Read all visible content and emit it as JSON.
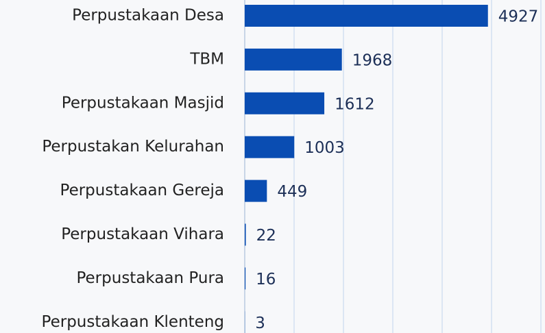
{
  "chart_data": {
    "type": "bar",
    "orientation": "horizontal",
    "categories": [
      "Perpustakaan Desa",
      "TBM",
      "Perpustakaan Masjid",
      "Perpustakan Kelurahan",
      "Perpustakaan Gereja",
      "Perpustakaan Vihara",
      "Perpustakaan Pura",
      "Perpustakaan Klenteng"
    ],
    "values": [
      4927,
      1968,
      1612,
      1003,
      449,
      22,
      16,
      3
    ],
    "color": "#0a4db2",
    "xlim": [
      0,
      6083
    ],
    "xticks": [
      0,
      1000,
      2000,
      3000,
      4000,
      5000,
      6000
    ],
    "grid": true
  }
}
